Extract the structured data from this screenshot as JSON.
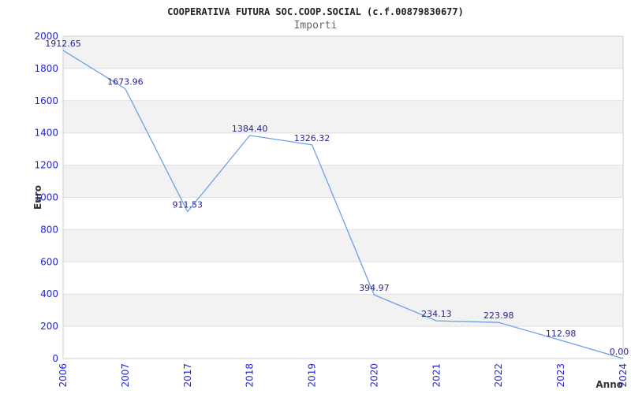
{
  "chart_data": {
    "type": "line",
    "title": "COOPERATIVA FUTURA SOC.COOP.SOCIAL (c.f.00879830677)",
    "subtitle": "Importi",
    "xlabel": "Anno",
    "ylabel": "Euro",
    "categories": [
      "2006",
      "2007",
      "2017",
      "2018",
      "2019",
      "2020",
      "2021",
      "2022",
      "2023",
      "2024"
    ],
    "series": [
      {
        "name": "Importi",
        "values": [
          1912.65,
          1673.96,
          911.53,
          1384.4,
          1326.32,
          394.97,
          234.13,
          223.98,
          112.98,
          0
        ]
      }
    ],
    "point_labels": [
      "1912.65",
      "1673.96",
      "911.53",
      "1384.40",
      "1326.32",
      "394.97",
      "234.13",
      "223.98",
      "112.98",
      "0.00"
    ],
    "ylim": [
      0,
      2000
    ],
    "ytick_step": 200,
    "grid": "alternating-horizontal-bands",
    "legend": "none",
    "colors": {
      "line": "#6ba0e6",
      "band": "#f2f2f2",
      "grid": "#e0e0e0",
      "border": "#cfcfcf",
      "tick_label": "#2525cf",
      "data_label": "#26268f",
      "title": "#222222",
      "subtitle": "#666666",
      "axis_title": "#333333"
    }
  }
}
